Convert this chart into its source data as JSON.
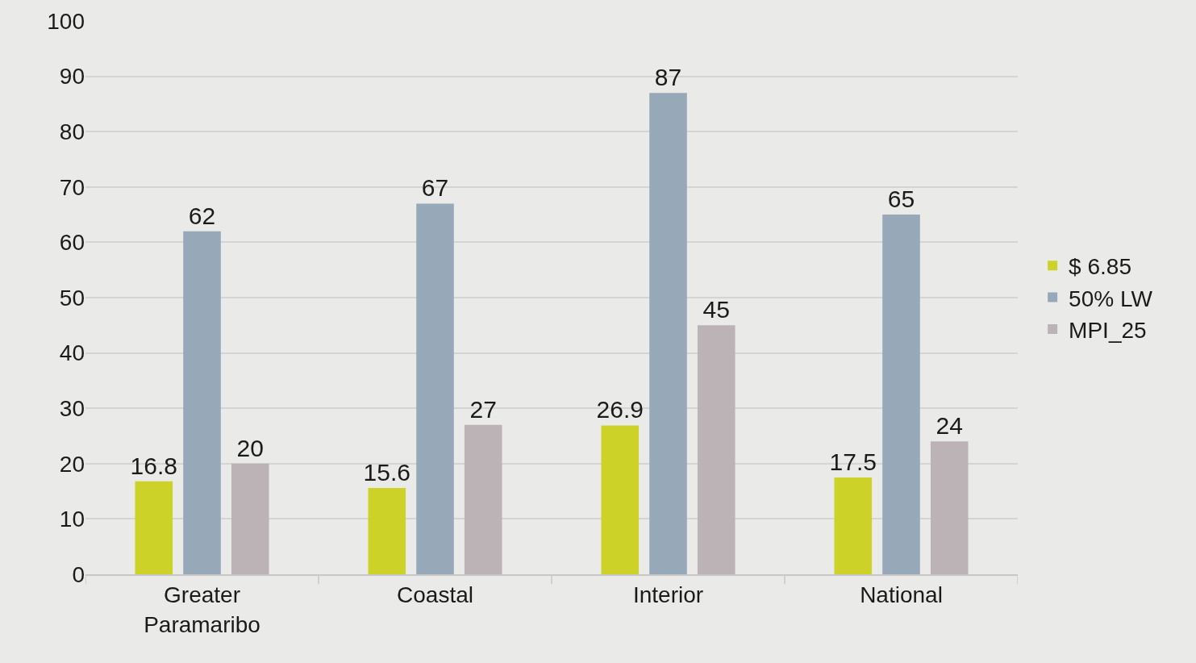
{
  "chart_data": {
    "type": "bar",
    "categories": [
      "Greater Paramaribo",
      "Coastal",
      "Interior",
      "National"
    ],
    "series": [
      {
        "name": "$ 6.85",
        "color": "#cdd228",
        "values": [
          16.8,
          15.6,
          26.9,
          17.5
        ]
      },
      {
        "name": "50% LW",
        "color": "#97a8b8",
        "values": [
          62,
          67,
          87,
          65
        ]
      },
      {
        "name": "MPI_25",
        "color": "#bcb3b6",
        "values": [
          20,
          27,
          45,
          24
        ]
      }
    ],
    "ylim": [
      0,
      100
    ],
    "yticks": [
      0,
      10,
      20,
      30,
      40,
      50,
      60,
      70,
      80,
      90,
      100
    ],
    "grid": "y",
    "legend": "right",
    "data_labels": true
  }
}
